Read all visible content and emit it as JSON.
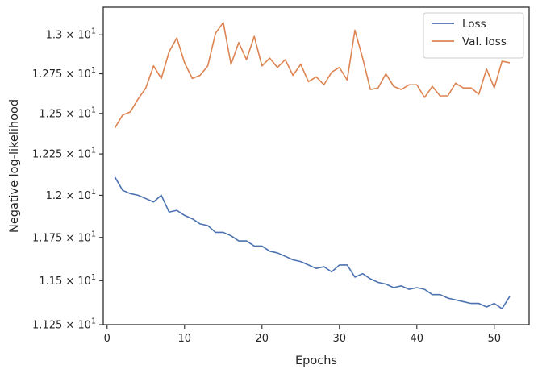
{
  "chart_data": {
    "type": "line",
    "title": "",
    "xlabel": "Epochs",
    "ylabel": "Negative log-likelihood",
    "xlim": [
      -0.5,
      54.5
    ],
    "ylim": [
      11.25,
      13.18
    ],
    "y_scale": "log",
    "grid": false,
    "legend_position": "top-right",
    "x_ticks": [
      {
        "value": 0,
        "label": "0"
      },
      {
        "value": 10,
        "label": "10"
      },
      {
        "value": 20,
        "label": "20"
      },
      {
        "value": 30,
        "label": "30"
      },
      {
        "value": 40,
        "label": "40"
      },
      {
        "value": 50,
        "label": "50"
      }
    ],
    "y_ticks": [
      {
        "value": 11.25,
        "mantissa": "1.125",
        "base": "10",
        "exp": "1"
      },
      {
        "value": 11.5,
        "mantissa": "1.15",
        "base": "10",
        "exp": "1"
      },
      {
        "value": 11.75,
        "mantissa": "1.175",
        "base": "10",
        "exp": "1"
      },
      {
        "value": 12.0,
        "mantissa": "1.2",
        "base": "10",
        "exp": "1"
      },
      {
        "value": 12.25,
        "mantissa": "1.225",
        "base": "10",
        "exp": "1"
      },
      {
        "value": 12.5,
        "mantissa": "1.25",
        "base": "10",
        "exp": "1"
      },
      {
        "value": 12.75,
        "mantissa": "1.275",
        "base": "10",
        "exp": "1"
      },
      {
        "value": 13.0,
        "mantissa": "1.3",
        "base": "10",
        "exp": "1"
      }
    ],
    "series": [
      {
        "name": "Loss",
        "color": "#4c72b0",
        "x": [
          1,
          2,
          3,
          4,
          5,
          6,
          7,
          8,
          9,
          10,
          11,
          12,
          13,
          14,
          15,
          16,
          17,
          18,
          19,
          20,
          21,
          22,
          23,
          24,
          25,
          26,
          27,
          28,
          29,
          30,
          31,
          32,
          33,
          34,
          35,
          36,
          37,
          38,
          39,
          40,
          41,
          42,
          43,
          44,
          45,
          46,
          47,
          48,
          49,
          50,
          51,
          52
        ],
        "y": [
          12.11,
          12.03,
          12.01,
          12.0,
          11.98,
          11.96,
          12.0,
          11.9,
          11.91,
          11.88,
          11.86,
          11.83,
          11.82,
          11.78,
          11.78,
          11.76,
          11.73,
          11.73,
          11.7,
          11.7,
          11.67,
          11.66,
          11.64,
          11.62,
          11.61,
          11.59,
          11.57,
          11.58,
          11.55,
          11.59,
          11.59,
          11.52,
          11.54,
          11.51,
          11.49,
          11.48,
          11.46,
          11.47,
          11.45,
          11.46,
          11.45,
          11.42,
          11.42,
          11.4,
          11.39,
          11.38,
          11.37,
          11.37,
          11.35,
          11.37,
          11.34,
          11.41
        ]
      },
      {
        "name": "Val. loss",
        "color": "#dd8452",
        "x": [
          1,
          2,
          3,
          4,
          5,
          6,
          7,
          8,
          9,
          10,
          11,
          12,
          13,
          14,
          15,
          16,
          17,
          18,
          19,
          20,
          21,
          22,
          23,
          24,
          25,
          26,
          27,
          28,
          29,
          30,
          31,
          32,
          33,
          34,
          35,
          36,
          37,
          38,
          39,
          40,
          41,
          42,
          43,
          44,
          45,
          46,
          47,
          48,
          49,
          50,
          51,
          52
        ],
        "y": [
          12.41,
          12.49,
          12.51,
          12.59,
          12.66,
          12.8,
          12.72,
          12.89,
          12.98,
          12.82,
          12.72,
          12.74,
          12.8,
          13.01,
          13.08,
          12.81,
          12.95,
          12.84,
          12.99,
          12.8,
          12.85,
          12.79,
          12.84,
          12.74,
          12.81,
          12.7,
          12.73,
          12.68,
          12.76,
          12.79,
          12.71,
          13.03,
          12.85,
          12.65,
          12.66,
          12.75,
          12.67,
          12.65,
          12.68,
          12.68,
          12.6,
          12.67,
          12.61,
          12.61,
          12.69,
          12.66,
          12.66,
          12.62,
          12.78,
          12.66,
          12.83,
          12.82
        ]
      }
    ]
  }
}
